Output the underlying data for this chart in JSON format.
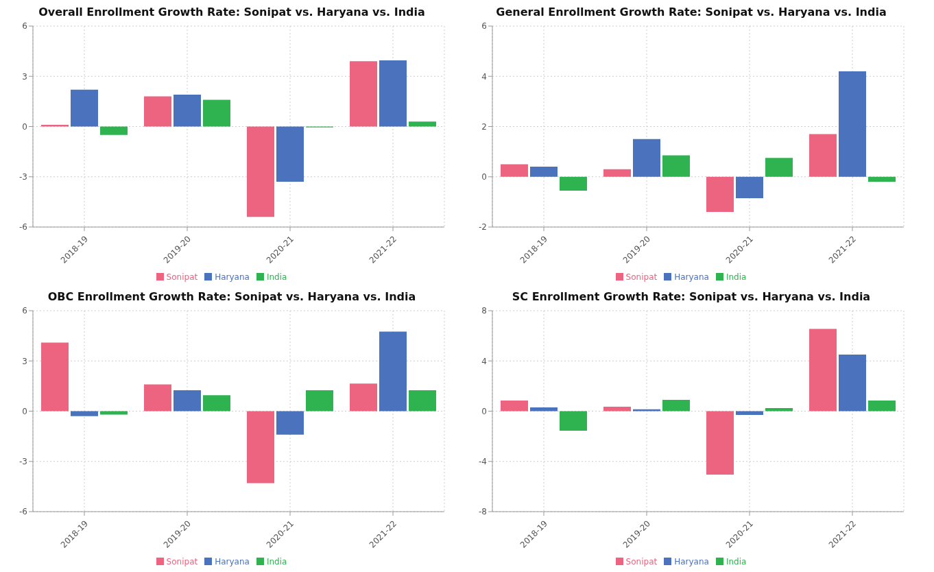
{
  "chart_data": [
    {
      "type": "bar",
      "title": "Overall Enrollment Growth Rate: Sonipat vs. Haryana vs. India",
      "categories": [
        "2018-19",
        "2019-20",
        "2020-21",
        "2021-22"
      ],
      "series": [
        {
          "name": "Sonipat",
          "color": "#ec6480",
          "values": [
            0.1,
            1.8,
            -5.4,
            3.9
          ]
        },
        {
          "name": "Haryana",
          "color": "#4a72bd",
          "values": [
            2.2,
            1.9,
            -3.3,
            3.95
          ]
        },
        {
          "name": "India",
          "color": "#2fb350",
          "values": [
            -0.5,
            1.6,
            -0.05,
            0.3
          ]
        }
      ],
      "ylim": [
        -6,
        6
      ],
      "yticks": [
        -6,
        -3,
        0,
        3,
        6
      ],
      "grid": true,
      "legend": "bottom"
    },
    {
      "type": "bar",
      "title": "General Enrollment Growth Rate: Sonipat vs. Haryana vs. India",
      "categories": [
        "2018-19",
        "2019-20",
        "2020-21",
        "2021-22"
      ],
      "series": [
        {
          "name": "Sonipat",
          "color": "#ec6480",
          "values": [
            0.5,
            0.3,
            -1.4,
            1.7
          ]
        },
        {
          "name": "Haryana",
          "color": "#4a72bd",
          "values": [
            0.4,
            1.5,
            -0.85,
            4.2
          ]
        },
        {
          "name": "India",
          "color": "#2fb350",
          "values": [
            -0.55,
            0.85,
            0.75,
            -0.2
          ]
        }
      ],
      "ylim": [
        -2,
        6
      ],
      "yticks": [
        -2,
        0,
        2,
        4,
        6
      ],
      "grid": true,
      "legend": "bottom"
    },
    {
      "type": "bar",
      "title": "OBC Enrollment Growth Rate: Sonipat vs. Haryana vs. India",
      "categories": [
        "2018-19",
        "2019-20",
        "2020-21",
        "2021-22"
      ],
      "series": [
        {
          "name": "Sonipat",
          "color": "#ec6480",
          "values": [
            4.1,
            1.6,
            -4.3,
            1.65
          ]
        },
        {
          "name": "Haryana",
          "color": "#4a72bd",
          "values": [
            -0.3,
            1.25,
            -1.4,
            4.75
          ]
        },
        {
          "name": "India",
          "color": "#2fb350",
          "values": [
            -0.2,
            0.95,
            1.25,
            1.25
          ]
        }
      ],
      "ylim": [
        -6,
        6
      ],
      "yticks": [
        -6,
        -3,
        0,
        3,
        6
      ],
      "grid": true,
      "legend": "bottom"
    },
    {
      "type": "bar",
      "title": "SC Enrollment Growth Rate: Sonipat vs. Haryana vs. India",
      "categories": [
        "2018-19",
        "2019-20",
        "2020-21",
        "2021-22"
      ],
      "series": [
        {
          "name": "Sonipat",
          "color": "#ec6480",
          "values": [
            0.85,
            0.35,
            -5.05,
            6.55
          ]
        },
        {
          "name": "Haryana",
          "color": "#4a72bd",
          "values": [
            0.3,
            0.15,
            -0.3,
            4.5
          ]
        },
        {
          "name": "India",
          "color": "#2fb350",
          "values": [
            -1.55,
            0.9,
            0.25,
            0.85
          ]
        }
      ],
      "ylim": [
        -8,
        8
      ],
      "yticks": [
        -8,
        -4,
        0,
        4,
        8
      ],
      "grid": true,
      "legend": "bottom"
    }
  ]
}
